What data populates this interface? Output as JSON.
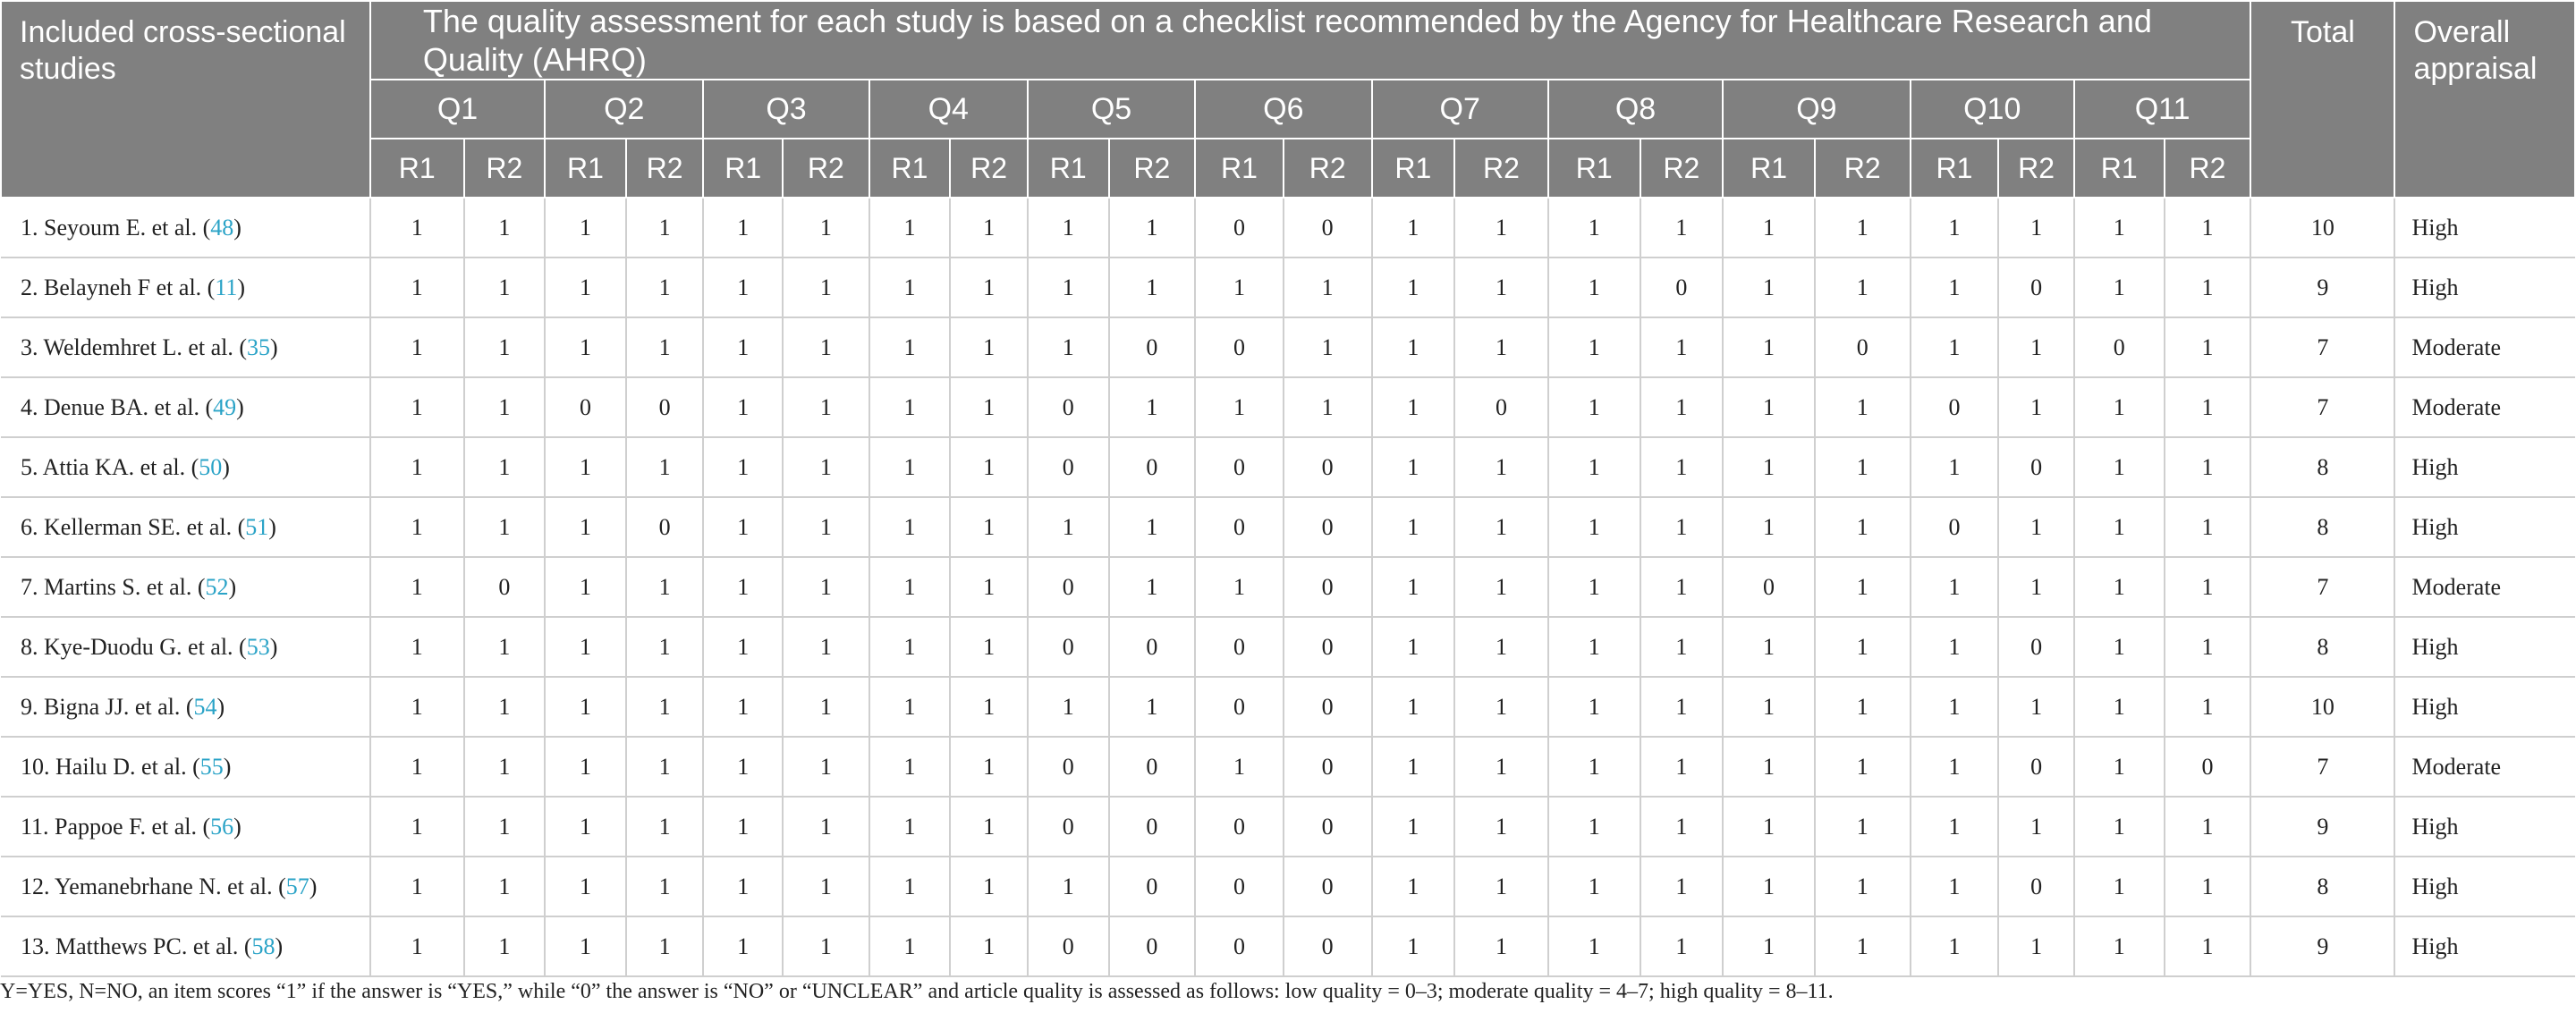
{
  "header": {
    "study_col": "Included cross-sectional studies",
    "title": "The quality assessment for each study is based on a checklist recommended by the Agency for Healthcare Research and Quality (AHRQ)",
    "questions": [
      "Q1",
      "Q2",
      "Q3",
      "Q4",
      "Q5",
      "Q6",
      "Q7",
      "Q8",
      "Q9",
      "Q10",
      "Q11"
    ],
    "r1": "R1",
    "r2": "R2",
    "total": "Total",
    "appraisal": "Overall appraisal"
  },
  "rows": [
    {
      "study": "1. Seyoum E. et al. (",
      "ref": "48",
      "close": ")",
      "scores": [
        "1",
        "1",
        "1",
        "1",
        "1",
        "1",
        "1",
        "1",
        "1",
        "1",
        "0",
        "0",
        "1",
        "1",
        "1",
        "1",
        "1",
        "1",
        "1",
        "1",
        "1",
        "1"
      ],
      "total": "10",
      "appraisal": "High"
    },
    {
      "study": "2. Belayneh F et al. (",
      "ref": "11",
      "close": ")",
      "scores": [
        "1",
        "1",
        "1",
        "1",
        "1",
        "1",
        "1",
        "1",
        "1",
        "1",
        "1",
        "1",
        "1",
        "1",
        "1",
        "0",
        "1",
        "1",
        "1",
        "0",
        "1",
        "1"
      ],
      "total": "9",
      "appraisal": "High"
    },
    {
      "study": "3. Weldemhret L. et al. (",
      "ref": "35",
      "close": ")",
      "scores": [
        "1",
        "1",
        "1",
        "1",
        "1",
        "1",
        "1",
        "1",
        "1",
        "0",
        "0",
        "1",
        "1",
        "1",
        "1",
        "1",
        "1",
        "0",
        "1",
        "1",
        "0",
        "1"
      ],
      "total": "7",
      "appraisal": "Moderate"
    },
    {
      "study": "4. Denue BA. et al. (",
      "ref": "49",
      "close": ")",
      "scores": [
        "1",
        "1",
        "0",
        "0",
        "1",
        "1",
        "1",
        "1",
        "0",
        "1",
        "1",
        "1",
        "1",
        "0",
        "1",
        "1",
        "1",
        "1",
        "0",
        "1",
        "1",
        "1"
      ],
      "total": "7",
      "appraisal": "Moderate"
    },
    {
      "study": "5. Attia KA. et al. (",
      "ref": "50",
      "close": ")",
      "scores": [
        "1",
        "1",
        "1",
        "1",
        "1",
        "1",
        "1",
        "1",
        "0",
        "0",
        "0",
        "0",
        "1",
        "1",
        "1",
        "1",
        "1",
        "1",
        "1",
        "0",
        "1",
        "1"
      ],
      "total": "8",
      "appraisal": "High"
    },
    {
      "study": "6. Kellerman SE. et al. (",
      "ref": "51",
      "close": ")",
      "scores": [
        "1",
        "1",
        "1",
        "0",
        "1",
        "1",
        "1",
        "1",
        "1",
        "1",
        "0",
        "0",
        "1",
        "1",
        "1",
        "1",
        "1",
        "1",
        "0",
        "1",
        "1",
        "1"
      ],
      "total": "8",
      "appraisal": "High"
    },
    {
      "study": "7. Martins S. et al. (",
      "ref": "52",
      "close": ")",
      "scores": [
        "1",
        "0",
        "1",
        "1",
        "1",
        "1",
        "1",
        "1",
        "0",
        "1",
        "1",
        "0",
        "1",
        "1",
        "1",
        "1",
        "0",
        "1",
        "1",
        "1",
        "1",
        "1"
      ],
      "total": "7",
      "appraisal": "Moderate"
    },
    {
      "study": "8. Kye-Duodu G. et al. (",
      "ref": "53",
      "close": ")",
      "scores": [
        "1",
        "1",
        "1",
        "1",
        "1",
        "1",
        "1",
        "1",
        "0",
        "0",
        "0",
        "0",
        "1",
        "1",
        "1",
        "1",
        "1",
        "1",
        "1",
        "0",
        "1",
        "1"
      ],
      "total": "8",
      "appraisal": "High"
    },
    {
      "study": "9. Bigna JJ. et al. (",
      "ref": "54",
      "close": ")",
      "scores": [
        "1",
        "1",
        "1",
        "1",
        "1",
        "1",
        "1",
        "1",
        "1",
        "1",
        "0",
        "0",
        "1",
        "1",
        "1",
        "1",
        "1",
        "1",
        "1",
        "1",
        "1",
        "1"
      ],
      "total": "10",
      "appraisal": "High"
    },
    {
      "study": "10. Hailu D. et al. (",
      "ref": "55",
      "close": ")",
      "scores": [
        "1",
        "1",
        "1",
        "1",
        "1",
        "1",
        "1",
        "1",
        "0",
        "0",
        "1",
        "0",
        "1",
        "1",
        "1",
        "1",
        "1",
        "1",
        "1",
        "0",
        "1",
        "0"
      ],
      "total": "7",
      "appraisal": "Moderate"
    },
    {
      "study": "11. Pappoe F. et al. (",
      "ref": "56",
      "close": ")",
      "scores": [
        "1",
        "1",
        "1",
        "1",
        "1",
        "1",
        "1",
        "1",
        "0",
        "0",
        "0",
        "0",
        "1",
        "1",
        "1",
        "1",
        "1",
        "1",
        "1",
        "1",
        "1",
        "1"
      ],
      "total": "9",
      "appraisal": "High"
    },
    {
      "study": "12. Yemanebrhane N. et al. (",
      "ref": "57",
      "close": ")",
      "scores": [
        "1",
        "1",
        "1",
        "1",
        "1",
        "1",
        "1",
        "1",
        "1",
        "0",
        "0",
        "0",
        "1",
        "1",
        "1",
        "1",
        "1",
        "1",
        "1",
        "0",
        "1",
        "1"
      ],
      "total": "8",
      "appraisal": "High"
    },
    {
      "study": "13. Matthews PC. et al. (",
      "ref": "58",
      "close": ")",
      "scores": [
        "1",
        "1",
        "1",
        "1",
        "1",
        "1",
        "1",
        "1",
        "0",
        "0",
        "0",
        "0",
        "1",
        "1",
        "1",
        "1",
        "1",
        "1",
        "1",
        "1",
        "1",
        "1"
      ],
      "total": "9",
      "appraisal": "High"
    }
  ],
  "footnote": "Y=YES, N=NO, an item scores “1” if the answer is “YES,” while “0” the answer is “NO” or “UNCLEAR” and article quality is assessed as follows: low quality = 0–3; moderate quality = 4–7; high quality = 8–11.",
  "colors": {
    "header_bg": "#808080",
    "header_text": "#ffffff",
    "link": "#2aa3c7",
    "grid": "#cfcfcf"
  }
}
